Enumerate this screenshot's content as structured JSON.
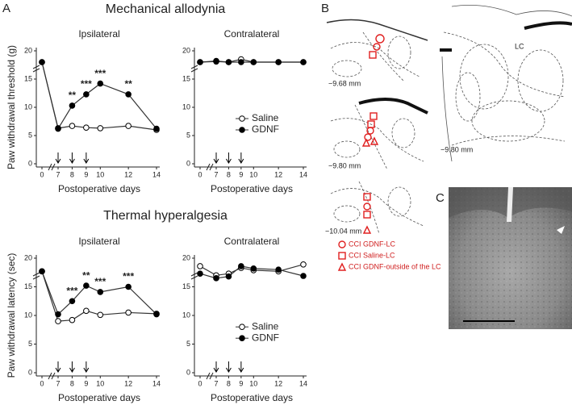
{
  "panel_labels": [
    "A",
    "B",
    "C"
  ],
  "section_titles": [
    "Mechanical allodynia",
    "Thermal hyperalgesia"
  ],
  "chart_data": [
    {
      "type": "line",
      "title": "Ipsilateral",
      "xlabel": "Postoperative days",
      "ylabel": "Paw withdrawal threshold (g)",
      "x": [
        0,
        7,
        8,
        9,
        10,
        12,
        14
      ],
      "xlim": [
        0,
        14
      ],
      "xticks": [
        0,
        7,
        8,
        9,
        10,
        12,
        14
      ],
      "ylim": [
        0,
        20
      ],
      "yticks": [
        0,
        5,
        10,
        15,
        20
      ],
      "axis_break": true,
      "legend": "lower right",
      "series": [
        {
          "name": "Saline",
          "color": "#ffffff",
          "values": [
            18,
            6.3,
            6.7,
            6.4,
            6.3,
            6.7,
            6.0
          ]
        },
        {
          "name": "GDNF",
          "color": "#000000",
          "values": [
            18,
            6.2,
            10.3,
            12.3,
            14.2,
            12.3,
            6.2
          ]
        }
      ],
      "arrows": [
        7,
        8,
        9
      ],
      "annotations": [
        {
          "x": 8,
          "label": "**"
        },
        {
          "x": 9,
          "label": "***"
        },
        {
          "x": 10,
          "label": "***"
        },
        {
          "x": 12,
          "label": "**"
        }
      ]
    },
    {
      "type": "line",
      "title": "Contralateral",
      "xlabel": "Postoperative days",
      "x": [
        0,
        7,
        8,
        9,
        10,
        12,
        14
      ],
      "xlim": [
        0,
        14
      ],
      "xticks": [
        0,
        7,
        8,
        9,
        10,
        12,
        14
      ],
      "ylim": [
        0,
        20
      ],
      "yticks": [
        0,
        5,
        10,
        15,
        20
      ],
      "axis_break": true,
      "series": [
        {
          "name": "Saline",
          "color": "#ffffff",
          "values": [
            18,
            18.1,
            18.0,
            18.5,
            18.0,
            18.0,
            18.0
          ]
        },
        {
          "name": "GDNF",
          "color": "#000000",
          "values": [
            18,
            18.2,
            18.0,
            18.0,
            18.0,
            18.0,
            18.0
          ]
        }
      ],
      "arrows": [
        7,
        8,
        9
      ]
    },
    {
      "type": "line",
      "title": "Ipsilateral",
      "xlabel": "Postoperative days",
      "ylabel": "Paw withdrawal latency (sec)",
      "x": [
        0,
        7,
        8,
        9,
        10,
        12,
        14
      ],
      "xlim": [
        0,
        14
      ],
      "xticks": [
        0,
        7,
        8,
        9,
        10,
        12,
        14
      ],
      "ylim": [
        0,
        20
      ],
      "yticks": [
        0,
        5,
        10,
        15,
        20
      ],
      "axis_break": true,
      "legend": "lower right",
      "series": [
        {
          "name": "Saline",
          "color": "#ffffff",
          "values": [
            17.7,
            9.0,
            9.2,
            10.8,
            10.1,
            10.5,
            10.3
          ]
        },
        {
          "name": "GDNF",
          "color": "#000000",
          "values": [
            17.7,
            10.2,
            12.5,
            15.2,
            14.1,
            15.0,
            10.2
          ]
        }
      ],
      "arrows": [
        7,
        8,
        9
      ],
      "annotations": [
        {
          "x": 8,
          "label": "***"
        },
        {
          "x": 9,
          "label": "**"
        },
        {
          "x": 10,
          "label": "***"
        },
        {
          "x": 12,
          "label": "***"
        }
      ]
    },
    {
      "type": "line",
      "title": "Contralateral",
      "xlabel": "Postoperative days",
      "x": [
        0,
        7,
        8,
        9,
        10,
        12,
        14
      ],
      "xlim": [
        0,
        14
      ],
      "xticks": [
        0,
        7,
        8,
        9,
        10,
        12,
        14
      ],
      "ylim": [
        0,
        20
      ],
      "yticks": [
        0,
        5,
        10,
        15,
        20
      ],
      "axis_break": true,
      "series": [
        {
          "name": "Saline",
          "color": "#ffffff",
          "values": [
            18.6,
            17.0,
            17.3,
            18.3,
            17.9,
            17.7,
            18.9
          ]
        },
        {
          "name": "GDNF",
          "color": "#000000",
          "values": [
            17.3,
            16.5,
            16.8,
            18.6,
            18.2,
            18.0,
            16.9
          ]
        }
      ],
      "arrows": [
        7,
        8,
        9
      ]
    }
  ],
  "panel_b": {
    "sections": [
      "−9.68 mm",
      "−9.80 mm",
      "−10.04 mm"
    ],
    "atlas": {
      "label": "LC",
      "level": "−9.80 mm"
    },
    "legend": [
      "CCI GDNF-LC",
      "CCI Saline-LC",
      "CCI GDNF-outside of the LC"
    ]
  }
}
